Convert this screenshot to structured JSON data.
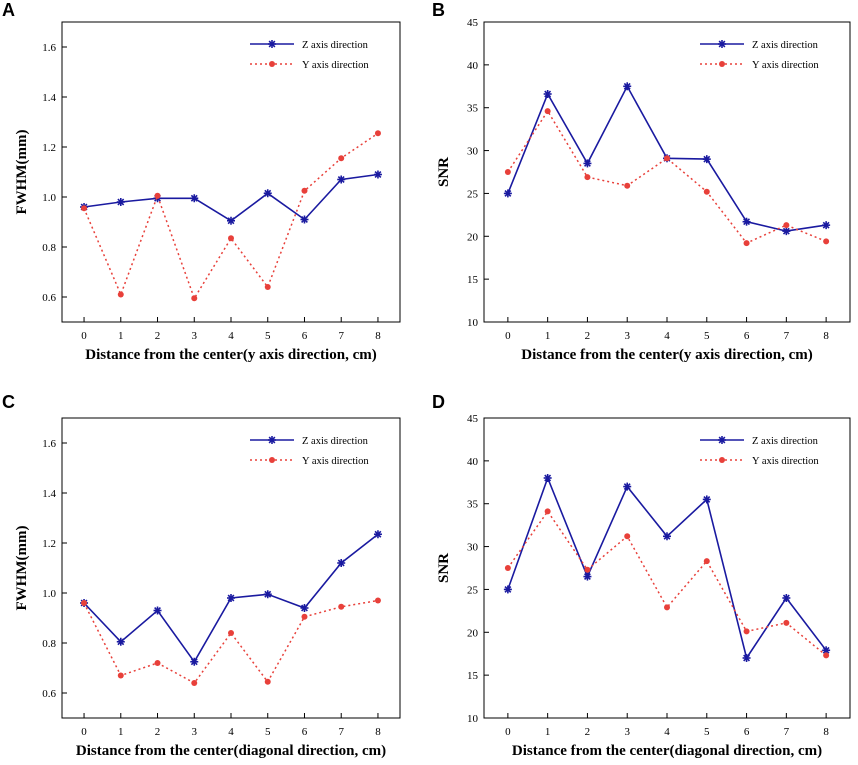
{
  "colors": {
    "z": "#1a1aa0",
    "y": "#e8403a",
    "axis": "#000000"
  },
  "chart_data": [
    {
      "panel": "A",
      "type": "line",
      "x": [
        0,
        1,
        2,
        3,
        4,
        5,
        6,
        7,
        8
      ],
      "xlabel": "Distance from the center(y axis direction, cm)",
      "ylabel": "FWHM(mm)",
      "ylim": [
        0.5,
        1.7
      ],
      "yticks": [
        0.6,
        0.8,
        1.0,
        1.2,
        1.4,
        1.6
      ],
      "ytick_labels": [
        "0.6",
        "0.8",
        "1.0",
        "1.2",
        "1.4",
        "1.6"
      ],
      "xtick_labels": [
        "0",
        "1",
        "2",
        "3",
        "4",
        "5",
        "6",
        "7",
        "8"
      ],
      "legend_position": "top-right",
      "series": [
        {
          "name": "Z axis direction",
          "style": "solid-star",
          "values": [
            0.96,
            0.98,
            0.995,
            0.995,
            0.905,
            1.015,
            0.91,
            1.07,
            1.09
          ]
        },
        {
          "name": "Y axis direction",
          "style": "dotted-circle",
          "values": [
            0.955,
            0.61,
            1.005,
            0.595,
            0.835,
            0.64,
            1.025,
            1.155,
            1.255
          ]
        }
      ]
    },
    {
      "panel": "B",
      "type": "line",
      "x": [
        0,
        1,
        2,
        3,
        4,
        5,
        6,
        7,
        8
      ],
      "xlabel": "Distance from the center(y axis direction, cm)",
      "ylabel": "SNR",
      "ylim": [
        10,
        45
      ],
      "yticks": [
        10,
        15,
        20,
        25,
        30,
        35,
        40,
        45
      ],
      "ytick_labels": [
        "10",
        "15",
        "20",
        "25",
        "30",
        "35",
        "40",
        "45"
      ],
      "xtick_labels": [
        "0",
        "1",
        "2",
        "3",
        "4",
        "5",
        "6",
        "7",
        "8"
      ],
      "legend_position": "top-right",
      "series": [
        {
          "name": "Z axis direction",
          "style": "solid-star",
          "values": [
            25.0,
            36.6,
            28.5,
            37.5,
            29.1,
            29.0,
            21.7,
            20.6,
            21.3
          ]
        },
        {
          "name": "Y axis direction",
          "style": "dotted-circle",
          "values": [
            27.5,
            34.6,
            26.9,
            25.9,
            29.1,
            25.2,
            19.2,
            21.3,
            19.4
          ]
        }
      ]
    },
    {
      "panel": "C",
      "type": "line",
      "x": [
        0,
        1,
        2,
        3,
        4,
        5,
        6,
        7,
        8
      ],
      "xlabel": "Distance from the center(diagonal direction, cm)",
      "ylabel": "FWHM(mm)",
      "ylim": [
        0.5,
        1.7
      ],
      "yticks": [
        0.6,
        0.8,
        1.0,
        1.2,
        1.4,
        1.6
      ],
      "ytick_labels": [
        "0.6",
        "0.8",
        "1.0",
        "1.2",
        "1.4",
        "1.6"
      ],
      "xtick_labels": [
        "0",
        "1",
        "2",
        "3",
        "4",
        "5",
        "6",
        "7",
        "8"
      ],
      "legend_position": "top-right",
      "series": [
        {
          "name": "Z axis direction",
          "style": "solid-star",
          "values": [
            0.96,
            0.805,
            0.93,
            0.725,
            0.98,
            0.995,
            0.94,
            1.12,
            1.235
          ]
        },
        {
          "name": "Y axis direction",
          "style": "dotted-circle",
          "values": [
            0.96,
            0.67,
            0.72,
            0.64,
            0.84,
            0.645,
            0.905,
            0.945,
            0.97
          ]
        }
      ]
    },
    {
      "panel": "D",
      "type": "line",
      "x": [
        0,
        1,
        2,
        3,
        4,
        5,
        6,
        7,
        8
      ],
      "xlabel": "Distance from the center(diagonal direction, cm)",
      "ylabel": "SNR",
      "ylim": [
        10,
        45
      ],
      "yticks": [
        10,
        15,
        20,
        25,
        30,
        35,
        40,
        45
      ],
      "ytick_labels": [
        "10",
        "15",
        "20",
        "25",
        "30",
        "35",
        "40",
        "45"
      ],
      "xtick_labels": [
        "0",
        "1",
        "2",
        "3",
        "4",
        "5",
        "6",
        "7",
        "8"
      ],
      "legend_position": "top-right",
      "series": [
        {
          "name": "Z axis direction",
          "style": "solid-star",
          "values": [
            25.0,
            38.0,
            26.5,
            37.0,
            31.2,
            35.5,
            17.0,
            24.0,
            17.9
          ]
        },
        {
          "name": "Y axis direction",
          "style": "dotted-circle",
          "values": [
            27.5,
            34.1,
            27.3,
            31.2,
            22.9,
            28.3,
            20.1,
            21.1,
            17.3
          ]
        }
      ]
    }
  ]
}
